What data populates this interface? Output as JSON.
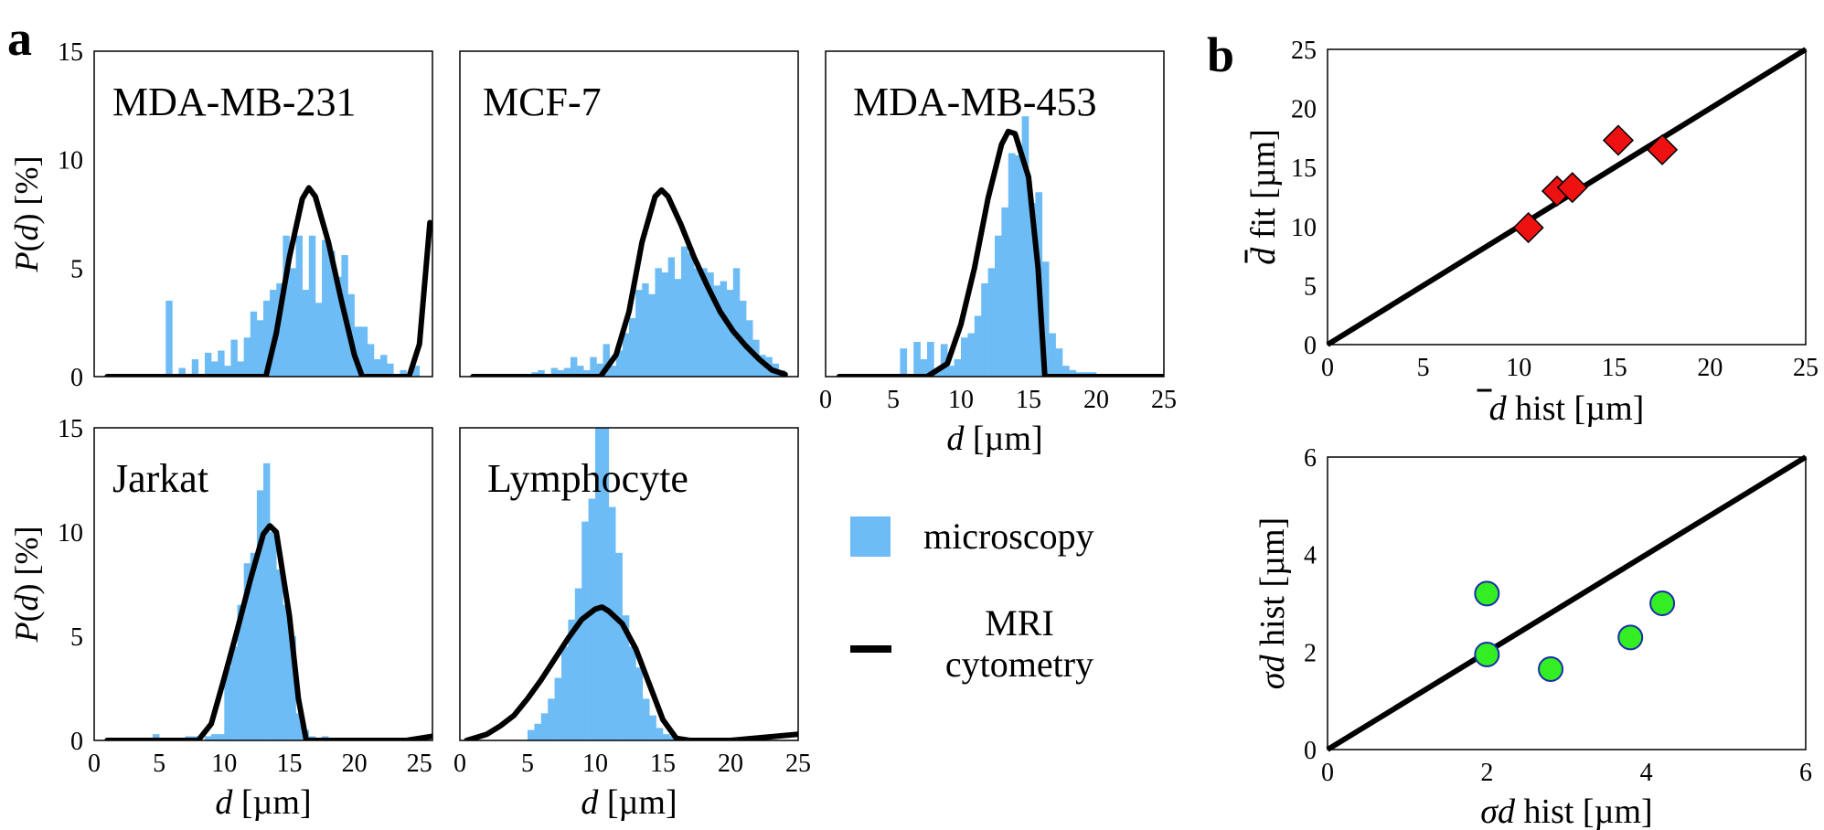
{
  "panel_labels": {
    "a": "a",
    "b": "b"
  },
  "colors": {
    "histogram": "#6dbcf6",
    "curve": "#000000",
    "diamond": "#ee1111",
    "circle": "#33ee22",
    "circle_edge": "#1a2ea8",
    "axes": "#000000"
  },
  "legend": {
    "microscopy": "microscopy",
    "mri_line1": "MRI",
    "mri_line2": "cytometry"
  },
  "chart_data": [
    {
      "type": "bar",
      "id": "mda231",
      "title": "MDA-MB-231",
      "xlabel": "",
      "ylabel": "P(d) [%]",
      "xlim": [
        0,
        26
      ],
      "ylim": [
        0,
        15
      ],
      "x_ticks": [],
      "y_ticks": [
        0,
        5,
        10,
        15
      ],
      "series": [
        {
          "name": "microscopy",
          "type": "bar",
          "bin_start": 5.5,
          "bin_width": 0.5,
          "values": [
            3.5,
            0,
            0.4,
            0,
            0.8,
            0,
            1.1,
            0.7,
            1.2,
            0.5,
            1.7,
            0.7,
            1.8,
            3.0,
            2.6,
            3.5,
            4.0,
            4.3,
            6.5,
            5.0,
            6.5,
            4.0,
            6.5,
            3.4,
            6.3,
            5.8,
            4.6,
            5.6,
            3.8,
            2.3,
            2.3,
            1.5,
            0.8,
            1.0,
            0.6,
            0,
            0.3,
            0,
            0.5,
            0,
            0
          ]
        },
        {
          "name": "MRI cytometry",
          "type": "line",
          "points": [
            [
              1,
              0
            ],
            [
              13.2,
              0
            ],
            [
              14,
              2
            ],
            [
              15,
              5.5
            ],
            [
              16,
              8.2
            ],
            [
              16.5,
              8.7
            ],
            [
              17,
              8.3
            ],
            [
              18,
              6.2
            ],
            [
              19,
              3.5
            ],
            [
              20,
              1
            ],
            [
              20.6,
              0
            ],
            [
              24.2,
              0
            ],
            [
              25,
              1.5
            ],
            [
              25.8,
              7.1
            ]
          ]
        }
      ]
    },
    {
      "type": "bar",
      "id": "mcf7",
      "title": "MCF-7",
      "xlabel": "",
      "ylabel": "",
      "xlim": [
        0,
        26
      ],
      "ylim": [
        0,
        15
      ],
      "x_ticks": [],
      "y_ticks": [],
      "series": [
        {
          "name": "microscopy",
          "type": "bar",
          "bin_start": 5.0,
          "bin_width": 0.5,
          "values": [
            0,
            0.2,
            0.3,
            0,
            0.4,
            0.3,
            0.4,
            0.9,
            0.5,
            0.3,
            0.9,
            0.6,
            1.5,
            0.5,
            1.2,
            2.0,
            2.7,
            4.0,
            4.3,
            3.8,
            5.0,
            4.8,
            5.5,
            4.5,
            6.0,
            5.7,
            5.0,
            5.0,
            4.8,
            4.2,
            4.4,
            4.0,
            5.0,
            3.5,
            2.6,
            1.7,
            1.0,
            0.9,
            0.6,
            0.3,
            0
          ]
        },
        {
          "name": "MRI cytometry",
          "type": "line",
          "points": [
            [
              1,
              0
            ],
            [
              10.8,
              0
            ],
            [
              12,
              1
            ],
            [
              13,
              3
            ],
            [
              14,
              6.2
            ],
            [
              15,
              8.3
            ],
            [
              15.5,
              8.6
            ],
            [
              16,
              8.3
            ],
            [
              17,
              7
            ],
            [
              18,
              5.5
            ],
            [
              19,
              4.2
            ],
            [
              20,
              3
            ],
            [
              21,
              2.1
            ],
            [
              22,
              1.4
            ],
            [
              23,
              0.8
            ],
            [
              24,
              0.3
            ],
            [
              25,
              0.1
            ]
          ]
        }
      ]
    },
    {
      "type": "bar",
      "id": "mda453",
      "title": "MDA-MB-453",
      "xlabel": "d [µm]",
      "ylabel": "",
      "xlim": [
        0,
        25
      ],
      "ylim": [
        0,
        15
      ],
      "x_ticks": [
        0,
        5,
        10,
        15,
        20,
        25
      ],
      "y_ticks": [],
      "series": [
        {
          "name": "microscopy",
          "type": "bar",
          "bin_start": 5.5,
          "bin_width": 0.5,
          "values": [
            1.3,
            0,
            1.6,
            0.8,
            1.6,
            0.3,
            1.5,
            0.5,
            0.8,
            1.8,
            2.0,
            2.8,
            4.3,
            5.0,
            6.5,
            7.8,
            10.3,
            10.2,
            12.0,
            8.0,
            8.5,
            5.3,
            2.0,
            1.3,
            0.5,
            0.3,
            0.2,
            0.2,
            0.2,
            0,
            0,
            0,
            0
          ]
        },
        {
          "name": "MRI cytometry",
          "type": "line",
          "points": [
            [
              1,
              0
            ],
            [
              7.5,
              0
            ],
            [
              9,
              0.6
            ],
            [
              10,
              2.4
            ],
            [
              11,
              5
            ],
            [
              12,
              8.2
            ],
            [
              13,
              10.7
            ],
            [
              13.5,
              11.3
            ],
            [
              14,
              11.2
            ],
            [
              15,
              9.2
            ],
            [
              15.7,
              5
            ],
            [
              16.2,
              0
            ],
            [
              25,
              0
            ]
          ]
        }
      ]
    },
    {
      "type": "bar",
      "id": "jarkat",
      "title": "Jarkat",
      "xlabel": "d [µm]",
      "ylabel": "P(d) [%]",
      "xlim": [
        0,
        26
      ],
      "ylim": [
        0,
        15
      ],
      "x_ticks": [
        0,
        5,
        10,
        15,
        20,
        25
      ],
      "y_ticks": [
        0,
        5,
        10,
        15
      ],
      "series": [
        {
          "name": "microscopy",
          "type": "bar",
          "bin_start": 4.5,
          "bin_width": 0.5,
          "values": [
            0.3,
            0,
            0,
            0,
            0,
            0.2,
            0.2,
            0,
            0.2,
            0.3,
            0.3,
            3.5,
            4.5,
            6.5,
            8.5,
            9.0,
            12.0,
            13.3,
            10.0,
            8.2,
            6.5,
            5.0,
            1.3,
            0.5,
            0.2,
            0,
            0.2,
            0,
            0,
            0.1,
            0,
            0,
            0
          ]
        },
        {
          "name": "MRI cytometry",
          "type": "line",
          "points": [
            [
              1,
              0
            ],
            [
              8,
              0
            ],
            [
              9,
              0.8
            ],
            [
              10,
              3
            ],
            [
              11,
              5.3
            ],
            [
              12,
              7.7
            ],
            [
              13,
              9.9
            ],
            [
              13.5,
              10.3
            ],
            [
              14,
              10
            ],
            [
              15,
              6
            ],
            [
              15.7,
              2
            ],
            [
              16.3,
              0
            ],
            [
              24,
              0
            ],
            [
              25,
              0.1
            ],
            [
              26,
              0.2
            ]
          ]
        }
      ]
    },
    {
      "type": "bar",
      "id": "lymphocyte",
      "title": "Lymphocyte",
      "xlabel": "d [µm]",
      "ylabel": "",
      "xlim": [
        0,
        25
      ],
      "ylim": [
        0,
        15
      ],
      "x_ticks": [
        0,
        5,
        10,
        15,
        20,
        25
      ],
      "y_ticks": [],
      "series": [
        {
          "name": "microscopy",
          "type": "bar",
          "bin_start": 5.0,
          "bin_width": 0.5,
          "values": [
            0.5,
            0.8,
            1.3,
            2.0,
            3.0,
            4.5,
            5.8,
            7.3,
            10.5,
            11.6,
            16.0,
            15.6,
            11.2,
            9.0,
            6.0,
            4.5,
            3.5,
            2.0,
            1.2,
            0.6,
            0.3,
            0.2,
            0.1,
            0,
            0
          ]
        },
        {
          "name": "MRI cytometry",
          "type": "line",
          "points": [
            [
              0.5,
              0
            ],
            [
              2,
              0.3
            ],
            [
              3,
              0.7
            ],
            [
              4,
              1.2
            ],
            [
              5,
              2
            ],
            [
              6,
              2.9
            ],
            [
              7,
              3.9
            ],
            [
              8,
              4.9
            ],
            [
              9,
              5.8
            ],
            [
              10,
              6.3
            ],
            [
              10.5,
              6.4
            ],
            [
              11,
              6.2
            ],
            [
              12,
              5.6
            ],
            [
              13,
              4.4
            ],
            [
              14,
              2.7
            ],
            [
              15,
              1
            ],
            [
              16,
              0.1
            ],
            [
              17,
              0
            ],
            [
              20,
              0
            ],
            [
              25,
              0.3
            ]
          ]
        }
      ]
    },
    {
      "type": "scatter",
      "id": "mean_fit",
      "xlabel": "d hist [µm]",
      "ylabel": "d fit [µm]",
      "xlim": [
        0,
        25
      ],
      "ylim": [
        0,
        25
      ],
      "x_ticks": [
        0,
        5,
        10,
        15,
        20,
        25
      ],
      "y_ticks": [
        0,
        5,
        10,
        15,
        20,
        25
      ],
      "identity_line": true,
      "points": [
        [
          10.5,
          9.9
        ],
        [
          12.0,
          13.0
        ],
        [
          12.8,
          13.3
        ],
        [
          15.2,
          17.3
        ],
        [
          17.5,
          16.5
        ]
      ]
    },
    {
      "type": "scatter",
      "id": "sigma",
      "xlabel": "σd hist [µm]",
      "ylabel": "σd hist [µm]",
      "xlim": [
        0,
        6
      ],
      "ylim": [
        0,
        6
      ],
      "x_ticks": [
        0,
        2,
        4,
        6
      ],
      "y_ticks": [
        0,
        2,
        4,
        6
      ],
      "identity_line": true,
      "points": [
        [
          2.0,
          3.2
        ],
        [
          2.0,
          1.95
        ],
        [
          2.8,
          1.65
        ],
        [
          3.8,
          2.3
        ],
        [
          4.2,
          3.0
        ]
      ]
    }
  ]
}
